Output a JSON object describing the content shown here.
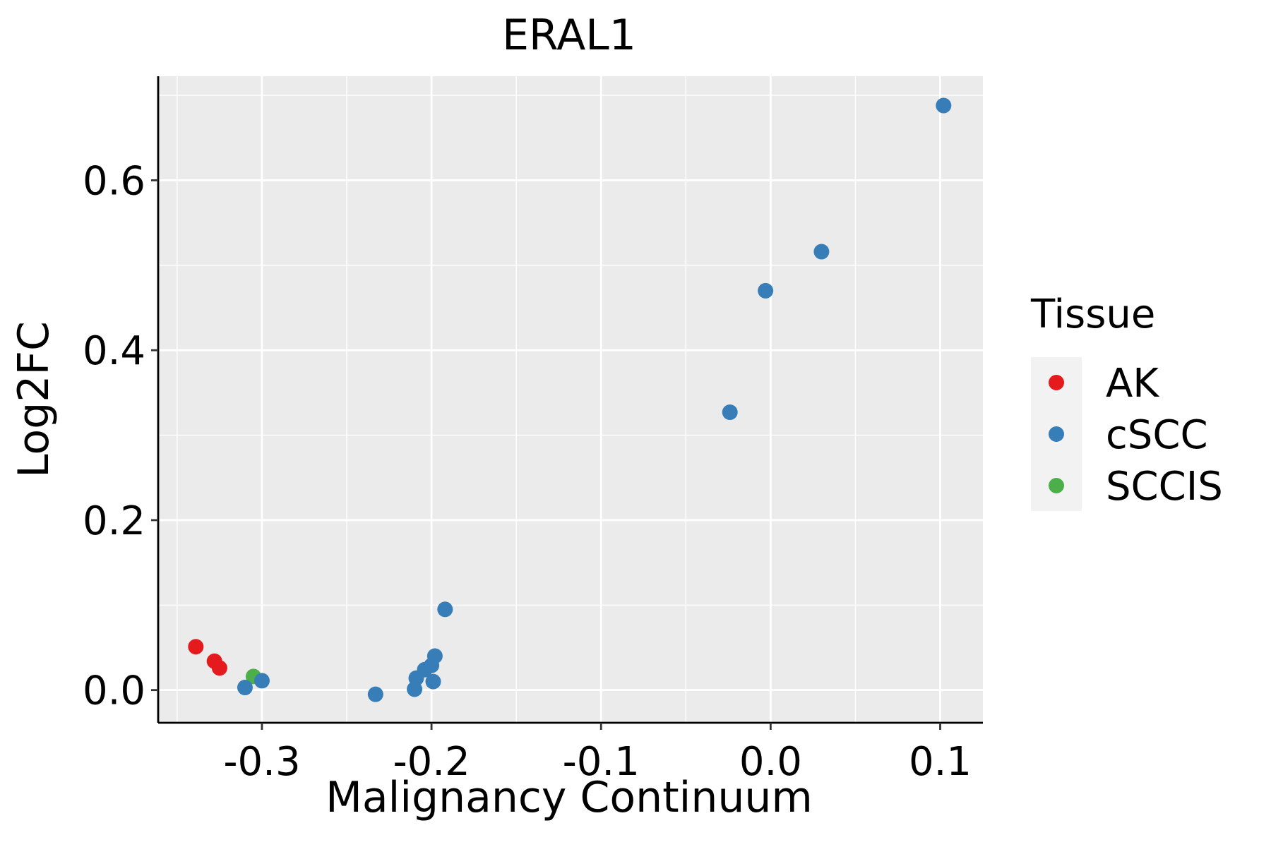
{
  "chart_data": {
    "type": "scatter",
    "title": "ERAL1",
    "xlabel": "Malignancy Continuum",
    "ylabel": "Log2FC",
    "xlim": [
      -0.3612,
      0.1252
    ],
    "ylim": [
      -0.0385,
      0.7225
    ],
    "x_ticks": [
      -0.3,
      -0.2,
      -0.1,
      0.0,
      0.1
    ],
    "x_tick_labels": [
      "-0.3",
      "-0.2",
      "-0.1",
      "0.0",
      "0.1"
    ],
    "y_ticks": [
      0.0,
      0.2,
      0.4,
      0.6
    ],
    "y_tick_labels": [
      "0.0",
      "0.2",
      "0.4",
      "0.6"
    ],
    "grid": true,
    "legend": {
      "title": "Tissue",
      "placement": "right",
      "entries": [
        {
          "label": "AK",
          "color": "#E41A1C"
        },
        {
          "label": "cSCC",
          "color": "#377EB8"
        },
        {
          "label": "SCCIS",
          "color": "#4DAF4A"
        }
      ]
    },
    "series": [
      {
        "name": "AK",
        "color": "#E41A1C",
        "points": [
          [
            -0.339,
            0.051
          ],
          [
            -0.328,
            0.034
          ],
          [
            -0.325,
            0.026
          ]
        ]
      },
      {
        "name": "SCCIS",
        "color": "#4DAF4A",
        "points": [
          [
            -0.305,
            0.016
          ]
        ]
      },
      {
        "name": "cSCC",
        "color": "#377EB8",
        "points": [
          [
            -0.31,
            0.003
          ],
          [
            -0.3,
            0.011
          ],
          [
            -0.233,
            -0.005
          ],
          [
            -0.21,
            0.001
          ],
          [
            -0.209,
            0.014
          ],
          [
            -0.204,
            0.024
          ],
          [
            -0.2,
            0.029
          ],
          [
            -0.199,
            0.01
          ],
          [
            -0.198,
            0.04
          ],
          [
            -0.192,
            0.095
          ],
          [
            -0.024,
            0.327
          ],
          [
            -0.003,
            0.47
          ],
          [
            0.03,
            0.516
          ],
          [
            0.102,
            0.688
          ]
        ]
      }
    ]
  }
}
